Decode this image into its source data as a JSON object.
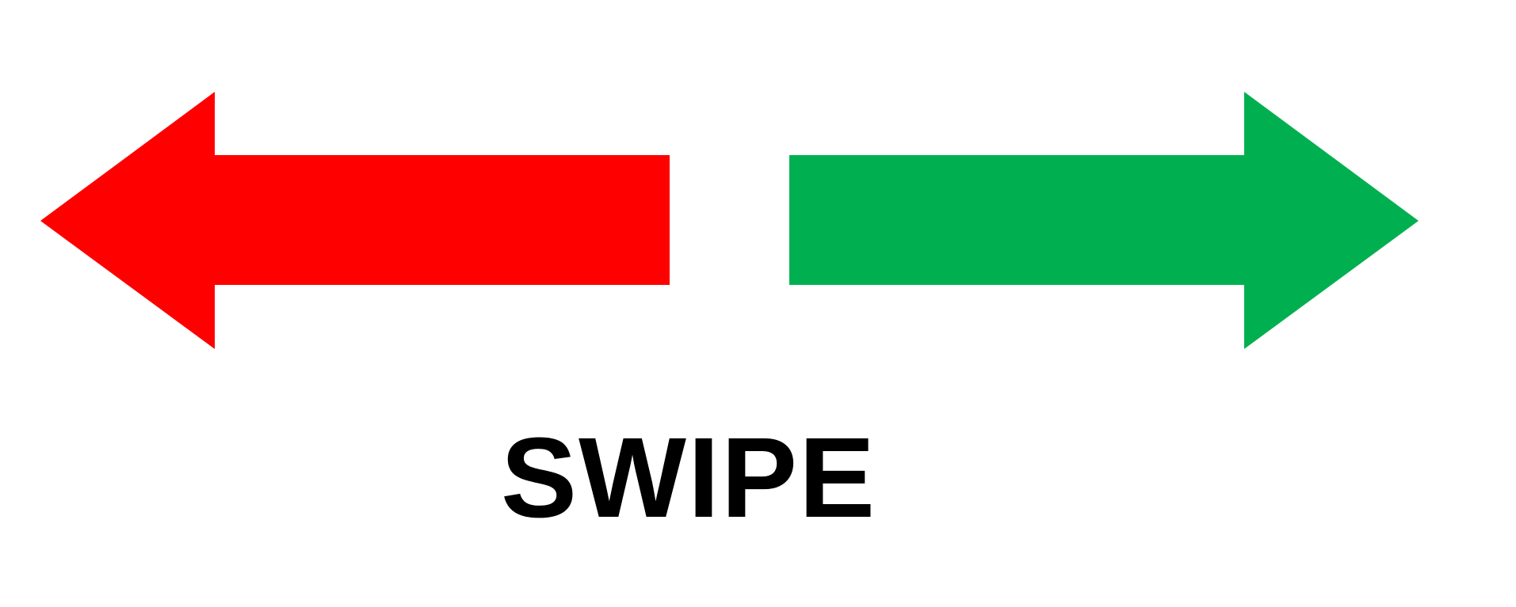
{
  "caption": "SWIPE",
  "arrows": {
    "left": {
      "direction": "left",
      "icon": "arrow-left-icon",
      "color": "#FF0000"
    },
    "right": {
      "direction": "right",
      "icon": "arrow-right-icon",
      "color": "#00B050"
    }
  },
  "colors": {
    "background": "#FFFFFF",
    "text": "#000000"
  }
}
